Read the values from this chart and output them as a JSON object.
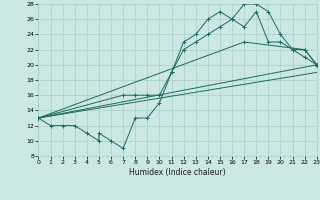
{
  "xlabel": "Humidex (Indice chaleur)",
  "bg_color": "#cce8e4",
  "grid_color": "#aacfcb",
  "line_color": "#1a6b5a",
  "xlim": [
    0,
    23
  ],
  "ylim": [
    8,
    28
  ],
  "xticks": [
    0,
    1,
    2,
    3,
    4,
    5,
    6,
    7,
    8,
    9,
    10,
    11,
    12,
    13,
    14,
    15,
    16,
    17,
    18,
    19,
    20,
    21,
    22,
    23
  ],
  "yticks": [
    8,
    10,
    12,
    14,
    16,
    18,
    20,
    22,
    24,
    26,
    28
  ],
  "line1_x": [
    0,
    1,
    2,
    3,
    4,
    5,
    5,
    6,
    7,
    8,
    9,
    10,
    11,
    12,
    13,
    14,
    15,
    16,
    17,
    18,
    19,
    20,
    21,
    22,
    23
  ],
  "line1_y": [
    13,
    12,
    12,
    12,
    11,
    10,
    11,
    10,
    9,
    13,
    13,
    15,
    19,
    23,
    24,
    26,
    27,
    26,
    28,
    28,
    27,
    24,
    22,
    21,
    20
  ],
  "line2_x": [
    0,
    7,
    8,
    9,
    10,
    11,
    12,
    13,
    14,
    15,
    16,
    17,
    18,
    19,
    20,
    21,
    22,
    23
  ],
  "line2_y": [
    13,
    16,
    16,
    16,
    16,
    19,
    22,
    23,
    24,
    25,
    26,
    25,
    27,
    23,
    23,
    22,
    22,
    20
  ],
  "line3_x": [
    0,
    17,
    22,
    23
  ],
  "line3_y": [
    13,
    23,
    22,
    20
  ],
  "line4_x": [
    0,
    23
  ],
  "line4_y": [
    13,
    20
  ],
  "line5_x": [
    0,
    23
  ],
  "line5_y": [
    13,
    19
  ]
}
